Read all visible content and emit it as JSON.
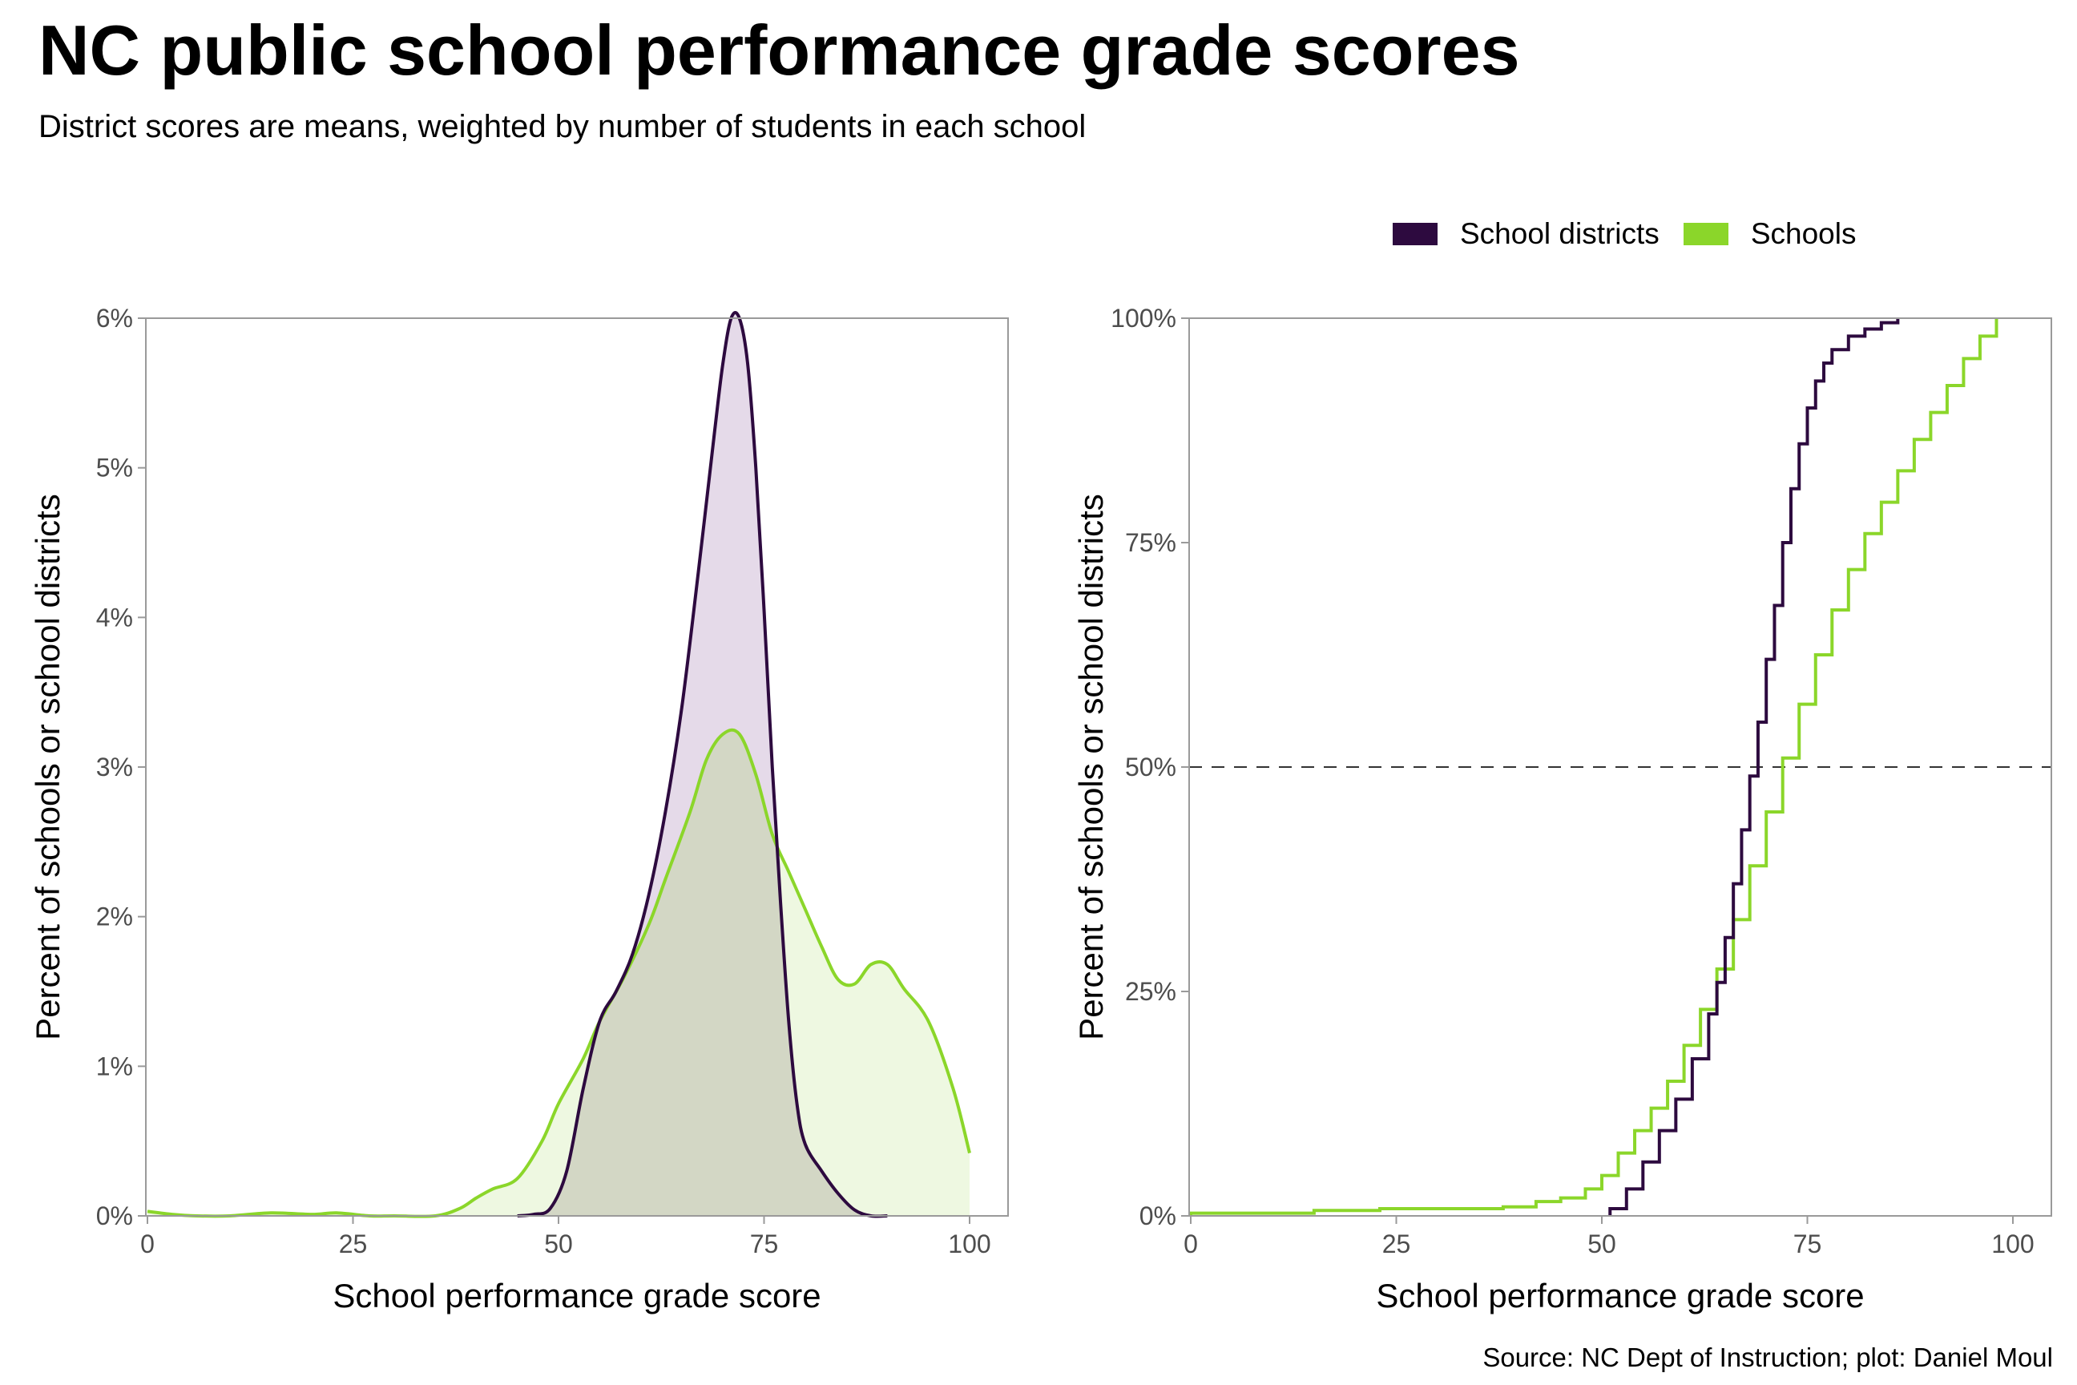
{
  "title": "NC public school performance grade scores",
  "subtitle": "District scores are means, weighted by number of students in each school",
  "source": "Source: NC Dept of Instruction; plot: Daniel Moul",
  "colors": {
    "School districts": "#2d0a3f",
    "Schools": "#8bd62a",
    "districts_fill": "#e0d4e5",
    "schools_fill": "#eef8e1",
    "overlap_fill": "#d3d7c5",
    "panel_border": "#9a9a9a",
    "median_line": "#333333"
  },
  "legend": [
    {
      "label": "School districts",
      "color": "#2d0a3f"
    },
    {
      "label": "Schools",
      "color": "#8bd62a"
    }
  ],
  "chart_data": [
    {
      "type": "area",
      "subtype": "density",
      "xlabel": "School performance grade score",
      "ylabel": "Percent of schools or school districts",
      "xlim": [
        0,
        100
      ],
      "ylim": [
        0,
        6
      ],
      "x_ticks": [
        "0",
        "25",
        "50",
        "75",
        "100"
      ],
      "y_ticks": [
        "0%",
        "1%",
        "2%",
        "3%",
        "4%",
        "5%",
        "6%"
      ],
      "grid": false,
      "series": [
        {
          "name": "Schools",
          "x": [
            0,
            3,
            6,
            10,
            15,
            20,
            23,
            27,
            30,
            35,
            38,
            40,
            42,
            45,
            48,
            50,
            53,
            55,
            58,
            61,
            63,
            66,
            68,
            70,
            72,
            74,
            76,
            78,
            80,
            82,
            84,
            86,
            88,
            90,
            92,
            95,
            98,
            100
          ],
          "y": [
            0.03,
            0.01,
            0.0,
            0.0,
            0.02,
            0.01,
            0.02,
            0.0,
            0.0,
            0.0,
            0.05,
            0.12,
            0.18,
            0.25,
            0.5,
            0.75,
            1.05,
            1.3,
            1.6,
            1.95,
            2.25,
            2.7,
            3.05,
            3.22,
            3.22,
            2.95,
            2.55,
            2.3,
            2.05,
            1.8,
            1.58,
            1.55,
            1.68,
            1.68,
            1.52,
            1.3,
            0.85,
            0.42
          ]
        },
        {
          "name": "School districts",
          "x": [
            45,
            47,
            49,
            51,
            53,
            55,
            57,
            59,
            61,
            63,
            65,
            67,
            69,
            70,
            71,
            72,
            73,
            74,
            75,
            76,
            77,
            78,
            79,
            80,
            82,
            84,
            86,
            88,
            90
          ],
          "y": [
            0.0,
            0.01,
            0.05,
            0.3,
            0.85,
            1.3,
            1.5,
            1.75,
            2.15,
            2.7,
            3.4,
            4.3,
            5.25,
            5.7,
            6.0,
            6.0,
            5.7,
            5.0,
            4.05,
            3.0,
            2.1,
            1.3,
            0.75,
            0.48,
            0.3,
            0.15,
            0.04,
            0.0,
            0.0
          ]
        }
      ]
    },
    {
      "type": "line",
      "subtype": "ecdf-step",
      "xlabel": "School performance grade score",
      "ylabel": "Percent of schools or school districts",
      "xlim": [
        0,
        100
      ],
      "ylim": [
        0,
        100
      ],
      "x_ticks": [
        "0",
        "25",
        "50",
        "75",
        "100"
      ],
      "y_ticks": [
        "0%",
        "25%",
        "50%",
        "75%",
        "100%"
      ],
      "reference_line": {
        "y": 50,
        "style": "dashed"
      },
      "grid": false,
      "series": [
        {
          "name": "Schools",
          "x": [
            0,
            15,
            23,
            38,
            42,
            45,
            48,
            50,
            52,
            54,
            56,
            58,
            60,
            62,
            64,
            66,
            68,
            70,
            72,
            74,
            76,
            78,
            80,
            82,
            84,
            86,
            88,
            90,
            92,
            94,
            96,
            98
          ],
          "y": [
            0.3,
            0.6,
            0.8,
            1.0,
            1.6,
            2.0,
            3.0,
            4.5,
            7.0,
            9.5,
            12.0,
            15.0,
            19.0,
            23.0,
            27.5,
            33.0,
            39.0,
            45.0,
            51.0,
            57.0,
            62.5,
            67.5,
            72.0,
            76.0,
            79.5,
            83.0,
            86.5,
            89.5,
            92.5,
            95.5,
            98.0,
            100.0
          ]
        },
        {
          "name": "School districts",
          "x": [
            51,
            53,
            55,
            57,
            59,
            61,
            63,
            64,
            65,
            66,
            67,
            68,
            69,
            70,
            71,
            72,
            73,
            74,
            75,
            76,
            77,
            78,
            80,
            82,
            84,
            86
          ],
          "y": [
            0.8,
            3.0,
            6.0,
            9.5,
            13.0,
            17.5,
            22.5,
            26.0,
            31.0,
            37.0,
            43.0,
            49.0,
            55.0,
            62.0,
            68.0,
            75.0,
            81.0,
            86.0,
            90.0,
            93.0,
            95.0,
            96.5,
            98.0,
            98.8,
            99.5,
            100.0
          ]
        }
      ]
    }
  ]
}
